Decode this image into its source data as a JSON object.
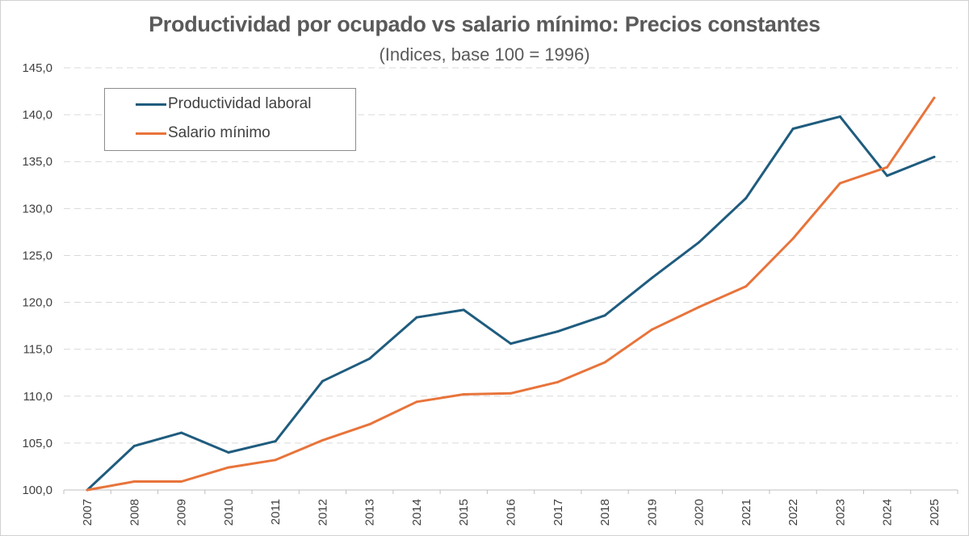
{
  "chart_data": {
    "type": "line",
    "title": "Productividad por ocupado vs salario mínimo: Precios constantes",
    "subtitle": "(Indices, base 100 = 1996)",
    "xlabel": "",
    "ylabel": "",
    "categories": [
      "2007",
      "2008",
      "2009",
      "2010",
      "2011",
      "2012",
      "2013",
      "2014",
      "2015",
      "2016",
      "2017",
      "2018",
      "2019",
      "2020",
      "2021",
      "2022",
      "2023",
      "2024",
      "2025"
    ],
    "ylim": [
      100,
      145
    ],
    "yticks": [
      "100,0",
      "105,0",
      "110,0",
      "115,0",
      "120,0",
      "125,0",
      "130,0",
      "135,0",
      "140,0",
      "145,0"
    ],
    "grid": "horizontal-dashed",
    "legend_position": "top-left",
    "series": [
      {
        "name": "Productividad laboral",
        "color": "#1f5c7e",
        "values": [
          100.0,
          104.7,
          106.1,
          104.0,
          105.2,
          111.6,
          114.0,
          118.4,
          119.2,
          115.6,
          116.9,
          118.6,
          122.6,
          126.4,
          131.1,
          138.5,
          139.8,
          133.5,
          135.5
        ]
      },
      {
        "name": "Salario mínimo",
        "color": "#e8743b",
        "values": [
          100.0,
          100.9,
          100.9,
          102.4,
          103.2,
          105.3,
          107.0,
          109.4,
          110.2,
          110.3,
          111.5,
          113.6,
          117.1,
          119.5,
          121.7,
          126.8,
          132.7,
          134.4,
          141.8
        ]
      }
    ]
  }
}
